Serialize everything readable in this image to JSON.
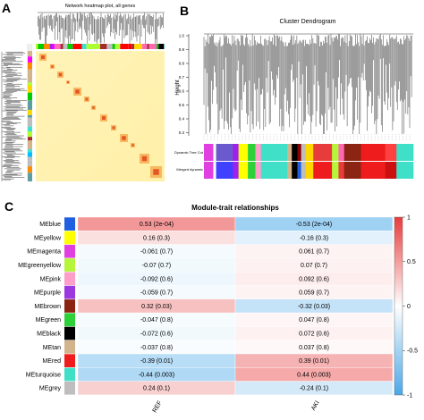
{
  "panels": {
    "a": {
      "letter": "A",
      "title": "Network heatmap plot, all genes"
    },
    "b": {
      "letter": "B",
      "title": "Cluster Dendrogram",
      "ylabel": "Height",
      "yticks": [
        "1.0",
        "0.9",
        "0.8",
        "0.7",
        "0.6",
        "0.5",
        "0.4",
        "0.3"
      ],
      "row_labels": [
        "Dynamic Tree Cut",
        "Merged dynamic"
      ]
    },
    "c": {
      "letter": "C"
    }
  },
  "chart_data": {
    "type": "heatmap",
    "title": "Module-trait relationships",
    "xcategories": [
      "REF",
      "AKI"
    ],
    "modules": [
      {
        "name": "MEblue",
        "color": "#1f5fe0",
        "cells": [
          "0.53 (2e-04)",
          "-0.53 (2e-04)"
        ],
        "values": [
          0.53,
          -0.53
        ]
      },
      {
        "name": "MEyellow",
        "color": "#ffff00",
        "cells": [
          "0.16 (0.3)",
          "-0.16 (0.3)"
        ],
        "values": [
          0.16,
          -0.16
        ]
      },
      {
        "name": "MEmagenta",
        "color": "#e040e0",
        "cells": [
          "-0.061 (0.7)",
          "0.061 (0.7)"
        ],
        "values": [
          -0.061,
          0.061
        ]
      },
      {
        "name": "MEgreenyellow",
        "color": "#b5f53a",
        "cells": [
          "-0.07 (0.7)",
          "0.07 (0.7)"
        ],
        "values": [
          -0.07,
          0.07
        ]
      },
      {
        "name": "MEpink",
        "color": "#ff9ec8",
        "cells": [
          "-0.092 (0.6)",
          "0.092 (0.6)"
        ],
        "values": [
          -0.092,
          0.092
        ]
      },
      {
        "name": "MEpurple",
        "color": "#9b38e0",
        "cells": [
          "-0.059 (0.7)",
          "0.059 (0.7)"
        ],
        "values": [
          -0.059,
          0.059
        ]
      },
      {
        "name": "MEbrown",
        "color": "#8b2412",
        "cells": [
          "0.32 (0.03)",
          "-0.32 (0.03)"
        ],
        "values": [
          0.32,
          -0.32
        ]
      },
      {
        "name": "MEgreen",
        "color": "#2fd13a",
        "cells": [
          "-0.047 (0.8)",
          "0.047 (0.8)"
        ],
        "values": [
          -0.047,
          0.047
        ]
      },
      {
        "name": "MEblack",
        "color": "#000000",
        "cells": [
          "-0.072 (0.6)",
          "0.072 (0.6)"
        ],
        "values": [
          -0.072,
          0.072
        ]
      },
      {
        "name": "MEtan",
        "color": "#d2b48c",
        "cells": [
          "-0.037 (0.8)",
          "0.037 (0.8)"
        ],
        "values": [
          -0.037,
          0.037
        ]
      },
      {
        "name": "MEred",
        "color": "#ee1c1c",
        "cells": [
          "-0.39 (0.01)",
          "0.39 (0.01)"
        ],
        "values": [
          -0.39,
          0.39
        ]
      },
      {
        "name": "MEturquoise",
        "color": "#40e0c8",
        "cells": [
          "-0.44 (0.003)",
          "0.44 (0.003)"
        ],
        "values": [
          -0.44,
          0.44
        ]
      },
      {
        "name": "MEgrey",
        "color": "#bebebe",
        "cells": [
          "0.24 (0.1)",
          "-0.24 (0.1)"
        ],
        "values": [
          0.24,
          -0.24
        ]
      }
    ],
    "colorbar": {
      "range": [
        -1,
        1
      ],
      "ticks": [
        "1",
        "0.5",
        "0",
        "-0.5",
        "-1"
      ],
      "low_color": "#4aa8e8",
      "mid_color": "#ffffff",
      "high_color": "#e83c3c"
    }
  }
}
